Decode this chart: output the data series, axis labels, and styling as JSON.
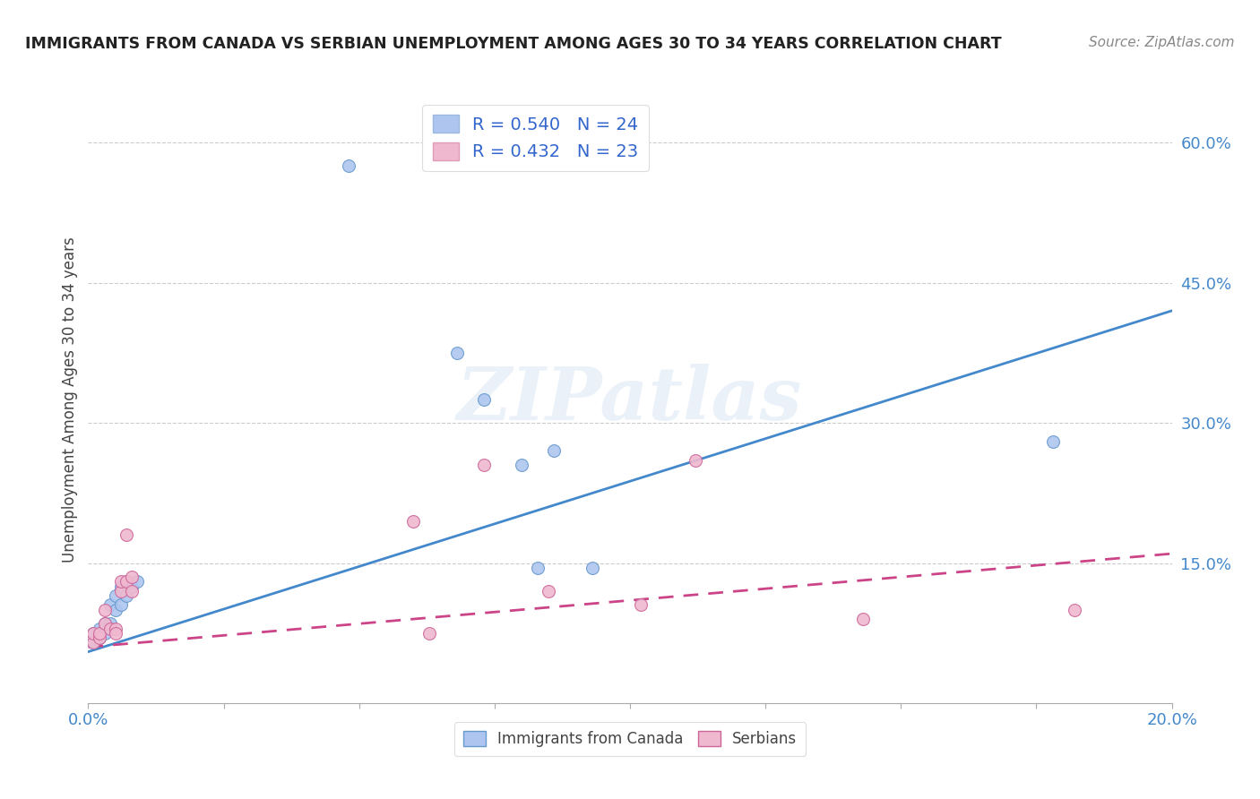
{
  "title": "IMMIGRANTS FROM CANADA VS SERBIAN UNEMPLOYMENT AMONG AGES 30 TO 34 YEARS CORRELATION CHART",
  "source": "Source: ZipAtlas.com",
  "ylabel": "Unemployment Among Ages 30 to 34 years",
  "right_yticks": [
    "60.0%",
    "45.0%",
    "30.0%",
    "15.0%"
  ],
  "right_ytick_vals": [
    0.6,
    0.45,
    0.3,
    0.15
  ],
  "legend_entries": [
    {
      "label": "R = 0.540   N = 24",
      "color": "#aec6ef"
    },
    {
      "label": "R = 0.432   N = 23",
      "color": "#f0b8cf"
    }
  ],
  "canada_scatter_x": [
    0.001,
    0.001,
    0.002,
    0.002,
    0.003,
    0.003,
    0.004,
    0.004,
    0.005,
    0.005,
    0.006,
    0.006,
    0.007,
    0.007,
    0.008,
    0.009,
    0.048,
    0.068,
    0.073,
    0.08,
    0.083,
    0.086,
    0.093,
    0.178
  ],
  "canada_scatter_y": [
    0.065,
    0.075,
    0.07,
    0.08,
    0.075,
    0.085,
    0.085,
    0.105,
    0.1,
    0.115,
    0.105,
    0.125,
    0.115,
    0.13,
    0.125,
    0.13,
    0.575,
    0.375,
    0.325,
    0.255,
    0.145,
    0.27,
    0.145,
    0.28
  ],
  "serbia_scatter_x": [
    0.001,
    0.001,
    0.002,
    0.002,
    0.003,
    0.003,
    0.004,
    0.005,
    0.005,
    0.006,
    0.006,
    0.007,
    0.007,
    0.008,
    0.008,
    0.06,
    0.063,
    0.073,
    0.085,
    0.102,
    0.112,
    0.143,
    0.182
  ],
  "serbia_scatter_y": [
    0.065,
    0.075,
    0.07,
    0.075,
    0.085,
    0.1,
    0.08,
    0.08,
    0.075,
    0.12,
    0.13,
    0.13,
    0.18,
    0.12,
    0.135,
    0.195,
    0.075,
    0.255,
    0.12,
    0.105,
    0.26,
    0.09,
    0.1
  ],
  "canada_line_x": [
    0.0,
    0.2
  ],
  "canada_line_y": [
    0.055,
    0.42
  ],
  "serbia_line_x": [
    0.0,
    0.2
  ],
  "serbia_line_y": [
    0.06,
    0.16
  ],
  "scatter_size": 100,
  "canada_scatter_color": "#aec6ef",
  "canada_scatter_edge": "#6699cc",
  "serbia_scatter_color": "#f0b8cf",
  "serbia_scatter_edge": "#cc6699",
  "canada_line_color": "#4488cc",
  "serbia_line_color": "#cc4488",
  "watermark": "ZIPatlas",
  "background_color": "#ffffff",
  "xlim": [
    0.0,
    0.2
  ],
  "ylim": [
    0.0,
    0.65
  ]
}
